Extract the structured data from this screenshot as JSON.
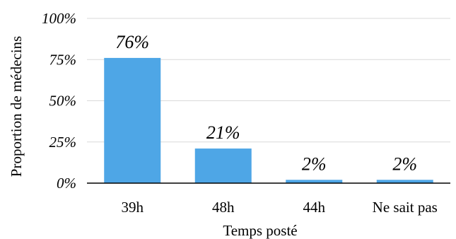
{
  "chart_data": {
    "type": "bar",
    "categories": [
      "39h",
      "48h",
      "44h",
      "Ne sait pas"
    ],
    "values": [
      76,
      21,
      2,
      2
    ],
    "data_labels": [
      "76%",
      "21%",
      "2%",
      "2%"
    ],
    "title": "",
    "xlabel": "Temps posté",
    "ylabel": "Proportion de médecins",
    "ylim": [
      0,
      100
    ],
    "yticks": [
      0,
      25,
      50,
      75,
      100
    ],
    "ytick_labels": [
      "0%",
      "25%",
      "50%",
      "75%",
      "100%"
    ],
    "grid": true,
    "legend": "none",
    "colors": {
      "bar": "#4EA6E6",
      "grid": "#D9D9D9",
      "axis": "#000000",
      "text": "#000000"
    }
  }
}
